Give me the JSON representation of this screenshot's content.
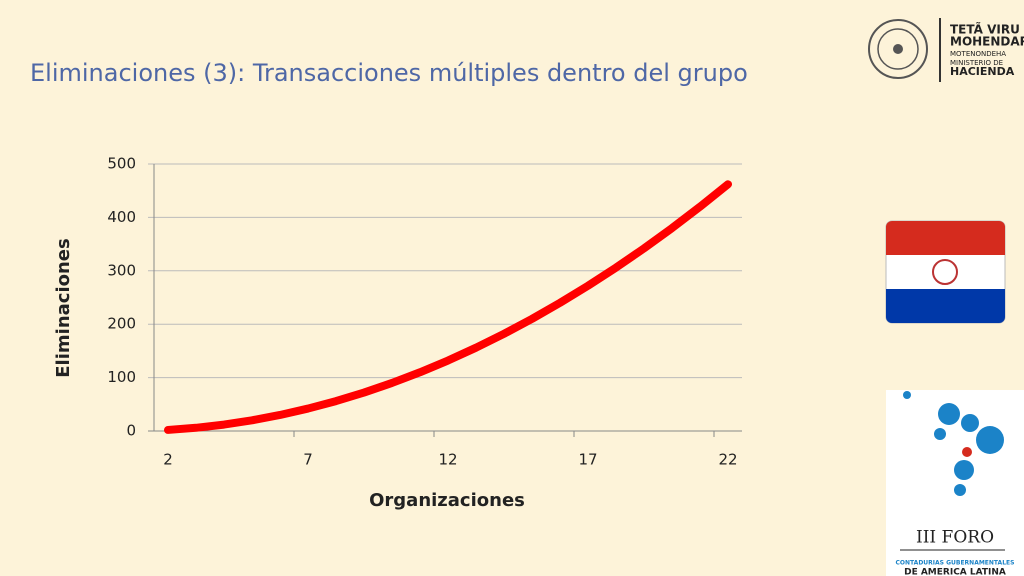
{
  "chart_data": {
    "type": "line",
    "title": "Eliminaciones (3): Transacciones múltiples dentro del grupo",
    "x_label": "Organizaciones",
    "y_label": "Eliminaciones",
    "categories": [
      "2",
      null,
      null,
      null,
      null,
      "7",
      null,
      null,
      null,
      null,
      "12",
      null,
      null,
      null,
      null,
      "17",
      null,
      null,
      null,
      null,
      "22"
    ],
    "series": [
      {
        "name": "Eliminaciones",
        "color": "#ff0000",
        "values": [
          2,
          6,
          12,
          20,
          30,
          42,
          56,
          72,
          90,
          110,
          132,
          156,
          182,
          210,
          240,
          272,
          306,
          342,
          380,
          420,
          462
        ]
      }
    ],
    "ylim": [
      0,
      500
    ],
    "yticks": [
      0,
      100,
      200,
      300,
      400,
      500
    ],
    "grid": true
  },
  "logos": {
    "ministry": [
      "TETÃ VIRU",
      "MOHENDAPY",
      "MOTENONDEHA",
      "MINISTERIO DE",
      "HACIENDA"
    ],
    "forum": [
      "III FORO",
      "CONTADURIAS GUBERNAMENTALES",
      "DE AMERICA LATINA"
    ]
  }
}
